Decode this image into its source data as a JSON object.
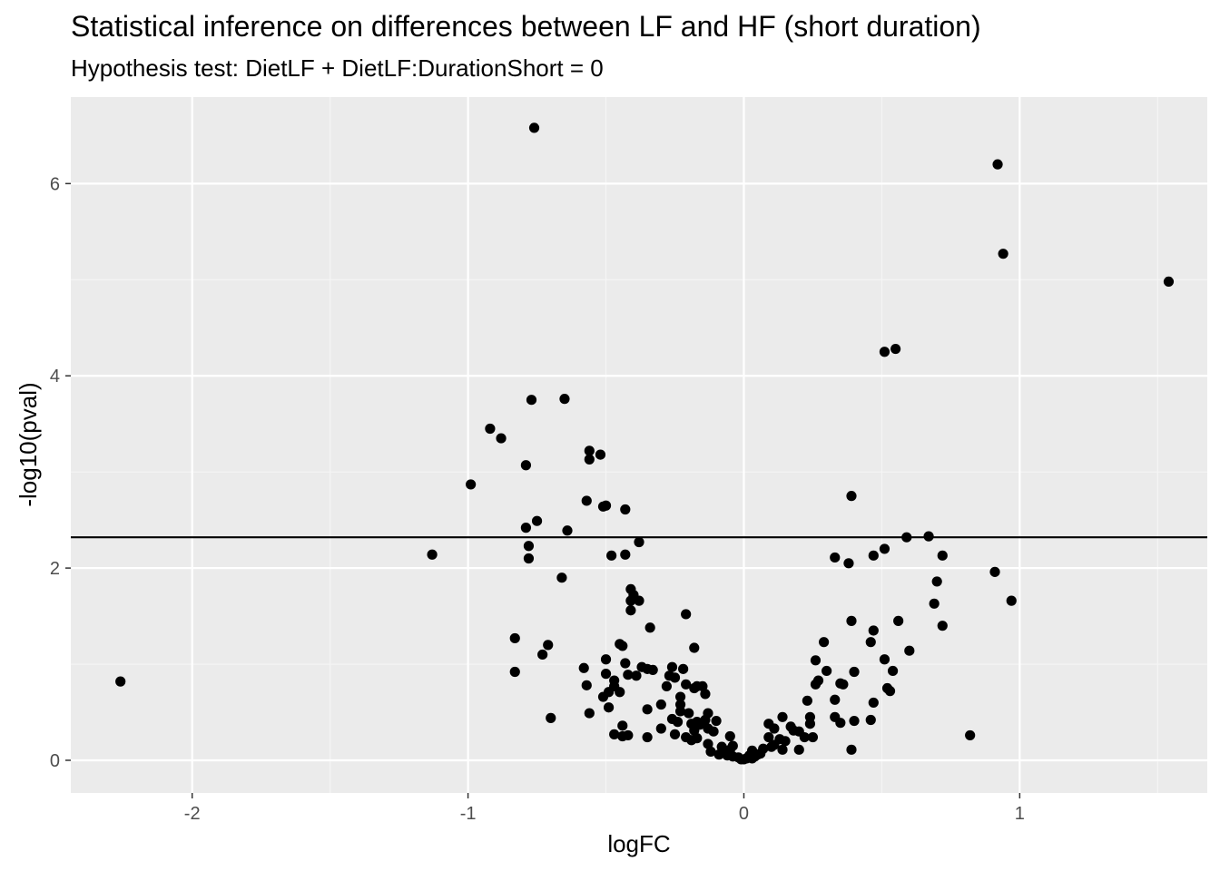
{
  "chart_data": {
    "type": "scatter",
    "title": "Statistical inference on differences between LF and HF (short duration)",
    "subtitle": "Hypothesis test: DietLF + DietLF:DurationShort = 0",
    "xlabel": "logFC",
    "ylabel": "-log10(pval)",
    "xlim": [
      -2.44,
      1.68
    ],
    "ylim": [
      -0.34,
      6.9
    ],
    "x_ticks": [
      -2,
      -1,
      0,
      1
    ],
    "x_tick_labels": [
      "-2",
      "-1",
      "0",
      "1"
    ],
    "y_ticks": [
      0,
      2,
      4,
      6
    ],
    "y_tick_labels": [
      "0",
      "2",
      "4",
      "6"
    ],
    "hline": 2.32,
    "grid": true,
    "colors": {
      "panel_background": "#ebebeb",
      "grid_major": "#ffffff",
      "grid_minor": "#f5f5f5",
      "points": "#000000",
      "hline": "#000000"
    },
    "points": [
      {
        "x": -0.76,
        "y": 6.58
      },
      {
        "x": 0.92,
        "y": 6.2
      },
      {
        "x": 0.94,
        "y": 5.27
      },
      {
        "x": 1.54,
        "y": 4.98
      },
      {
        "x": 0.55,
        "y": 4.28
      },
      {
        "x": 0.51,
        "y": 4.25
      },
      {
        "x": -0.77,
        "y": 3.75
      },
      {
        "x": -0.65,
        "y": 3.76
      },
      {
        "x": -0.92,
        "y": 3.45
      },
      {
        "x": -0.88,
        "y": 3.35
      },
      {
        "x": -0.56,
        "y": 3.22
      },
      {
        "x": -0.52,
        "y": 3.18
      },
      {
        "x": -0.56,
        "y": 3.13
      },
      {
        "x": -0.79,
        "y": 3.07
      },
      {
        "x": -0.99,
        "y": 2.87
      },
      {
        "x": 0.39,
        "y": 2.75
      },
      {
        "x": -0.57,
        "y": 2.7
      },
      {
        "x": -0.5,
        "y": 2.65
      },
      {
        "x": -0.51,
        "y": 2.64
      },
      {
        "x": -0.43,
        "y": 2.61
      },
      {
        "x": -0.75,
        "y": 2.49
      },
      {
        "x": -0.79,
        "y": 2.42
      },
      {
        "x": -0.64,
        "y": 2.39
      },
      {
        "x": 0.59,
        "y": 2.32
      },
      {
        "x": 0.67,
        "y": 2.33
      },
      {
        "x": -0.38,
        "y": 2.27
      },
      {
        "x": -0.78,
        "y": 2.23
      },
      {
        "x": 0.51,
        "y": 2.2
      },
      {
        "x": -1.13,
        "y": 2.14
      },
      {
        "x": -0.48,
        "y": 2.13
      },
      {
        "x": -0.43,
        "y": 2.14
      },
      {
        "x": 0.47,
        "y": 2.13
      },
      {
        "x": 0.72,
        "y": 2.13
      },
      {
        "x": -0.78,
        "y": 2.1
      },
      {
        "x": 0.33,
        "y": 2.11
      },
      {
        "x": 0.38,
        "y": 2.05
      },
      {
        "x": 0.91,
        "y": 1.96
      },
      {
        "x": -0.66,
        "y": 1.9
      },
      {
        "x": 0.7,
        "y": 1.86
      },
      {
        "x": -0.41,
        "y": 1.78
      },
      {
        "x": -0.4,
        "y": 1.72
      },
      {
        "x": -0.41,
        "y": 1.66
      },
      {
        "x": -0.38,
        "y": 1.66
      },
      {
        "x": 0.97,
        "y": 1.66
      },
      {
        "x": 0.69,
        "y": 1.63
      },
      {
        "x": -0.41,
        "y": 1.56
      },
      {
        "x": -0.21,
        "y": 1.52
      },
      {
        "x": 0.39,
        "y": 1.45
      },
      {
        "x": 0.56,
        "y": 1.45
      },
      {
        "x": 0.72,
        "y": 1.4
      },
      {
        "x": -0.34,
        "y": 1.38
      },
      {
        "x": 0.47,
        "y": 1.35
      },
      {
        "x": -0.83,
        "y": 1.27
      },
      {
        "x": 0.29,
        "y": 1.23
      },
      {
        "x": 0.46,
        "y": 1.23
      },
      {
        "x": -0.71,
        "y": 1.2
      },
      {
        "x": -0.45,
        "y": 1.21
      },
      {
        "x": -0.44,
        "y": 1.19
      },
      {
        "x": -0.18,
        "y": 1.17
      },
      {
        "x": 0.6,
        "y": 1.14
      },
      {
        "x": -0.73,
        "y": 1.1
      },
      {
        "x": -0.5,
        "y": 1.05
      },
      {
        "x": 0.26,
        "y": 1.04
      },
      {
        "x": 0.51,
        "y": 1.05
      },
      {
        "x": -0.43,
        "y": 1.01
      },
      {
        "x": -0.37,
        "y": 0.97
      },
      {
        "x": -0.58,
        "y": 0.96
      },
      {
        "x": -0.35,
        "y": 0.95
      },
      {
        "x": -0.33,
        "y": 0.94
      },
      {
        "x": -0.26,
        "y": 0.97
      },
      {
        "x": -0.22,
        "y": 0.95
      },
      {
        "x": 0.3,
        "y": 0.93
      },
      {
        "x": 0.4,
        "y": 0.92
      },
      {
        "x": 0.54,
        "y": 0.93
      },
      {
        "x": -0.83,
        "y": 0.92
      },
      {
        "x": -0.5,
        "y": 0.9
      },
      {
        "x": -0.42,
        "y": 0.89
      },
      {
        "x": -0.39,
        "y": 0.88
      },
      {
        "x": -0.27,
        "y": 0.88
      },
      {
        "x": -0.25,
        "y": 0.86
      },
      {
        "x": -0.47,
        "y": 0.83
      },
      {
        "x": -2.26,
        "y": 0.82
      },
      {
        "x": 0.27,
        "y": 0.83
      },
      {
        "x": 0.35,
        "y": 0.8
      },
      {
        "x": 0.36,
        "y": 0.79
      },
      {
        "x": 0.26,
        "y": 0.79
      },
      {
        "x": -0.57,
        "y": 0.78
      },
      {
        "x": -0.47,
        "y": 0.77
      },
      {
        "x": -0.21,
        "y": 0.79
      },
      {
        "x": -0.17,
        "y": 0.77
      },
      {
        "x": -0.15,
        "y": 0.77
      },
      {
        "x": -0.18,
        "y": 0.75
      },
      {
        "x": -0.28,
        "y": 0.77
      },
      {
        "x": 0.52,
        "y": 0.75
      },
      {
        "x": -0.49,
        "y": 0.71
      },
      {
        "x": -0.45,
        "y": 0.71
      },
      {
        "x": -0.14,
        "y": 0.69
      },
      {
        "x": -0.51,
        "y": 0.66
      },
      {
        "x": 0.53,
        "y": 0.72
      },
      {
        "x": -0.23,
        "y": 0.66
      },
      {
        "x": 0.23,
        "y": 0.62
      },
      {
        "x": 0.33,
        "y": 0.63
      },
      {
        "x": 0.47,
        "y": 0.6
      },
      {
        "x": -0.3,
        "y": 0.58
      },
      {
        "x": -0.23,
        "y": 0.58
      },
      {
        "x": -0.49,
        "y": 0.55
      },
      {
        "x": -0.35,
        "y": 0.53
      },
      {
        "x": -0.23,
        "y": 0.51
      },
      {
        "x": -0.2,
        "y": 0.49
      },
      {
        "x": -0.56,
        "y": 0.49
      },
      {
        "x": -0.13,
        "y": 0.49
      },
      {
        "x": 0.14,
        "y": 0.45
      },
      {
        "x": 0.33,
        "y": 0.45
      },
      {
        "x": 0.24,
        "y": 0.45
      },
      {
        "x": -0.7,
        "y": 0.44
      },
      {
        "x": -0.26,
        "y": 0.43
      },
      {
        "x": 0.46,
        "y": 0.42
      },
      {
        "x": 0.4,
        "y": 0.41
      },
      {
        "x": -0.14,
        "y": 0.42
      },
      {
        "x": -0.1,
        "y": 0.41
      },
      {
        "x": -0.24,
        "y": 0.4
      },
      {
        "x": -0.17,
        "y": 0.4
      },
      {
        "x": -0.19,
        "y": 0.38
      },
      {
        "x": 0.09,
        "y": 0.38
      },
      {
        "x": 0.24,
        "y": 0.38
      },
      {
        "x": 0.35,
        "y": 0.39
      },
      {
        "x": -0.16,
        "y": 0.37
      },
      {
        "x": -0.44,
        "y": 0.36
      },
      {
        "x": 0.17,
        "y": 0.35
      },
      {
        "x": 0.11,
        "y": 0.33
      },
      {
        "x": -0.3,
        "y": 0.33
      },
      {
        "x": -0.13,
        "y": 0.33
      },
      {
        "x": -0.18,
        "y": 0.31
      },
      {
        "x": 0.18,
        "y": 0.31
      },
      {
        "x": 0.2,
        "y": 0.3
      },
      {
        "x": -0.11,
        "y": 0.3
      },
      {
        "x": -0.47,
        "y": 0.27
      },
      {
        "x": -0.42,
        "y": 0.26
      },
      {
        "x": -0.25,
        "y": 0.27
      },
      {
        "x": -0.44,
        "y": 0.25
      },
      {
        "x": -0.35,
        "y": 0.24
      },
      {
        "x": -0.21,
        "y": 0.24
      },
      {
        "x": 0.82,
        "y": 0.26
      },
      {
        "x": 0.25,
        "y": 0.24
      },
      {
        "x": 0.22,
        "y": 0.24
      },
      {
        "x": -0.17,
        "y": 0.23
      },
      {
        "x": -0.05,
        "y": 0.25
      },
      {
        "x": 0.09,
        "y": 0.24
      },
      {
        "x": 0.13,
        "y": 0.22
      },
      {
        "x": -0.19,
        "y": 0.21
      },
      {
        "x": 0.15,
        "y": 0.2
      },
      {
        "x": -0.13,
        "y": 0.17
      },
      {
        "x": 0.11,
        "y": 0.16
      },
      {
        "x": -0.08,
        "y": 0.14
      },
      {
        "x": -0.04,
        "y": 0.15
      },
      {
        "x": 0.1,
        "y": 0.14
      },
      {
        "x": 0.07,
        "y": 0.12
      },
      {
        "x": -0.05,
        "y": 0.11
      },
      {
        "x": 0.03,
        "y": 0.1
      },
      {
        "x": 0.14,
        "y": 0.11
      },
      {
        "x": 0.2,
        "y": 0.11
      },
      {
        "x": 0.39,
        "y": 0.11
      },
      {
        "x": -0.12,
        "y": 0.09
      },
      {
        "x": -0.07,
        "y": 0.08
      },
      {
        "x": 0.06,
        "y": 0.07
      },
      {
        "x": -0.09,
        "y": 0.06
      },
      {
        "x": 0.05,
        "y": 0.06
      },
      {
        "x": -0.06,
        "y": 0.05
      },
      {
        "x": 0.02,
        "y": 0.05
      },
      {
        "x": -0.04,
        "y": 0.04
      },
      {
        "x": 0.04,
        "y": 0.04
      },
      {
        "x": -0.02,
        "y": 0.03
      },
      {
        "x": 0.01,
        "y": 0.02
      },
      {
        "x": -0.01,
        "y": 0.01
      },
      {
        "x": 0.0,
        "y": 0.01
      },
      {
        "x": 0.03,
        "y": 0.02
      }
    ]
  }
}
